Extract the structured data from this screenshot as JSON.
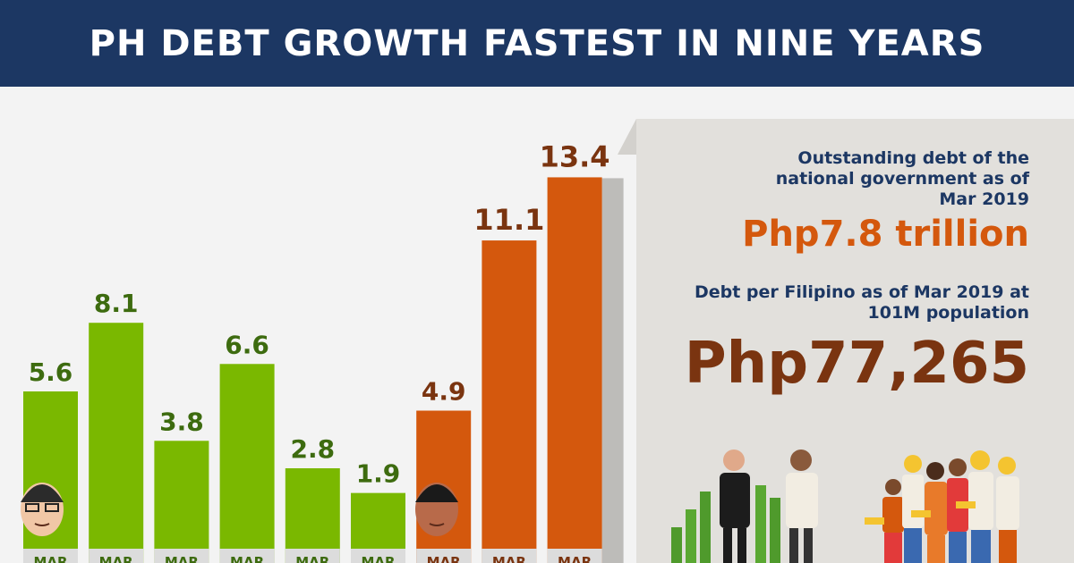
{
  "header": {
    "title": "PH DEBT GROWTH FASTEST IN NINE YEARS"
  },
  "info": {
    "debt_label": "Outstanding debt of the national government as of Mar 2019",
    "debt_value": "Php7.8 trillion",
    "per_capita_label": "Debt per Filipino as of Mar 2019 at 101M population",
    "per_capita_value": "Php77,265"
  },
  "colors": {
    "green_bar": "#7ab800",
    "green_label": "#3d6b0f",
    "orange_bar": "#d4580d",
    "brown_label": "#7a3410",
    "navy": "#1c3763",
    "panel": "#e2e0dc"
  },
  "chart_data": {
    "type": "bar",
    "categories": [
      "MAR",
      "MAR",
      "MAR",
      "MAR",
      "MAR",
      "MAR",
      "MAR",
      "MAR",
      "MAR"
    ],
    "values": [
      5.6,
      8.1,
      3.8,
      6.6,
      2.8,
      1.9,
      4.9,
      11.1,
      13.4
    ],
    "value_labels": [
      "5.6",
      "8.1",
      "3.8",
      "6.6",
      "2.8",
      "1.9",
      "4.9",
      "11.1",
      "13.4"
    ],
    "bar_colors": [
      "green",
      "green",
      "green",
      "green",
      "green",
      "green",
      "orange",
      "orange",
      "orange"
    ],
    "ylim": [
      0,
      14
    ],
    "grid": false,
    "legend": "none",
    "title": "",
    "xlabel": "",
    "ylabel": ""
  }
}
